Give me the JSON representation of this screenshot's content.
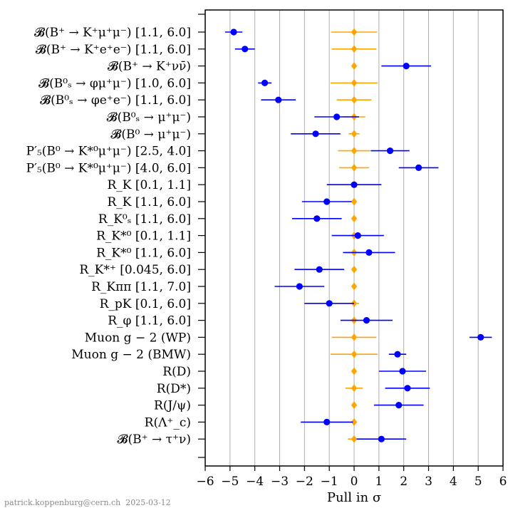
{
  "chart_data": {
    "type": "scatter",
    "xlabel": "Pull in σ",
    "xlim": [
      -6,
      6
    ],
    "xticks": [
      -6,
      -5,
      -4,
      -3,
      -2,
      -1,
      0,
      1,
      2,
      3,
      4,
      5,
      6
    ],
    "xtick_labels": [
      "−6",
      "−5",
      "−4",
      "−3",
      "−2",
      "−1",
      "0",
      "1",
      "2",
      "3",
      "4",
      "5",
      "6"
    ],
    "grid": "vertical",
    "colors": {
      "measurement": "#0000ff",
      "prediction": "#ffa500"
    },
    "rows": [
      {
        "label": "𝓑(B⁺ → K⁺μ⁺μ⁻) [1.1, 6.0]",
        "pull": -4.85,
        "pull_err": 0.35,
        "pred": 0.0,
        "pred_err": 0.93
      },
      {
        "label": "𝓑(B⁺ → K⁺e⁺e⁻) [1.1, 6.0]",
        "pull": -4.4,
        "pull_err": 0.4,
        "pred": 0.0,
        "pred_err": 0.9
      },
      {
        "label": "𝓑(B⁺ → K⁺νν̄)",
        "pull": 2.1,
        "pull_err": 1.0,
        "pred": 0.0,
        "pred_err": 0.1
      },
      {
        "label": "𝓑(B⁰ₛ → φμ⁺μ⁻) [1.0, 6.0]",
        "pull": -3.6,
        "pull_err": 0.27,
        "pred": 0.0,
        "pred_err": 0.95
      },
      {
        "label": "𝓑(B⁰ₛ → φe⁺e⁻) [1.1, 6.0]",
        "pull": -3.05,
        "pull_err": 0.7,
        "pred": 0.0,
        "pred_err": 0.7
      },
      {
        "label": "𝓑(B⁰ₛ → μ⁺μ⁻)",
        "pull": -0.7,
        "pull_err": 0.9,
        "pred": 0.0,
        "pred_err": 0.45
      },
      {
        "label": "𝓑(B⁰ → μ⁺μ⁻)",
        "pull": -1.55,
        "pull_err": 1.0,
        "pred": 0.0,
        "pred_err": 0.22
      },
      {
        "label": "P′₅(B⁰ → K*⁰μ⁺μ⁻) [2.5, 4.0]",
        "pull": 1.45,
        "pull_err": 0.78,
        "pred": 0.0,
        "pred_err": 0.65
      },
      {
        "label": "P′₅(B⁰ → K*⁰μ⁺μ⁻) [4.0, 6.0]",
        "pull": 2.6,
        "pull_err": 0.8,
        "pred": 0.0,
        "pred_err": 0.6
      },
      {
        "label": "R_K [0.1, 1.1]",
        "pull": 0.0,
        "pull_err": 1.1,
        "pred": 0.0,
        "pred_err": 0.1
      },
      {
        "label": "R_K [1.1, 6.0]",
        "pull": -1.1,
        "pull_err": 1.0,
        "pred": 0.0,
        "pred_err": 0.1
      },
      {
        "label": "R_K⁰ₛ [1.1, 6.0]",
        "pull": -1.5,
        "pull_err": 1.0,
        "pred": 0.0,
        "pred_err": 0.1
      },
      {
        "label": "R_K*⁰ [0.1, 1.1]",
        "pull": 0.15,
        "pull_err": 1.05,
        "pred": 0.0,
        "pred_err": 0.12
      },
      {
        "label": "R_K*⁰ [1.1, 6.0]",
        "pull": 0.6,
        "pull_err": 1.05,
        "pred": 0.0,
        "pred_err": 0.35
      },
      {
        "label": "R_K*⁺ [0.045, 6.0]",
        "pull": -1.4,
        "pull_err": 1.0,
        "pred": 0.0,
        "pred_err": 0.1
      },
      {
        "label": "R_Kππ [1.1, 7.0]",
        "pull": -2.2,
        "pull_err": 1.0,
        "pred": 0.0,
        "pred_err": 0.1
      },
      {
        "label": "R_pK [0.1, 6.0]",
        "pull": -1.0,
        "pull_err": 1.0,
        "pred": 0.0,
        "pred_err": 0.2
      },
      {
        "label": "R_φ [1.1, 6.0]",
        "pull": 0.5,
        "pull_err": 1.05,
        "pred": 0.0,
        "pred_err": 0.15
      },
      {
        "label": "Muon g − 2 (WP)",
        "pull": 5.1,
        "pull_err": 0.45,
        "pred": 0.0,
        "pred_err": 0.9
      },
      {
        "label": "Muon g − 2 (BMW)",
        "pull": 1.75,
        "pull_err": 0.35,
        "pred": 0.0,
        "pred_err": 0.95
      },
      {
        "label": "R(D)",
        "pull": 1.95,
        "pull_err": 0.95,
        "pred": 0.0,
        "pred_err": 0.1
      },
      {
        "label": "R(D*)",
        "pull": 2.15,
        "pull_err": 0.9,
        "pred": 0.0,
        "pred_err": 0.35
      },
      {
        "label": "R(J/ψ)",
        "pull": 1.8,
        "pull_err": 1.0,
        "pred": 0.0,
        "pred_err": 0.1
      },
      {
        "label": "R(Λ⁺_c)",
        "pull": -1.1,
        "pull_err": 1.05,
        "pred": 0.0,
        "pred_err": 0.1
      },
      {
        "label": "𝓑(B⁺ → τ⁺ν)",
        "pull": 1.1,
        "pull_err": 1.0,
        "pred": 0.0,
        "pred_err": 0.25
      }
    ]
  },
  "footer": "patrick.koppenburg@cern.ch  2025-03-12"
}
